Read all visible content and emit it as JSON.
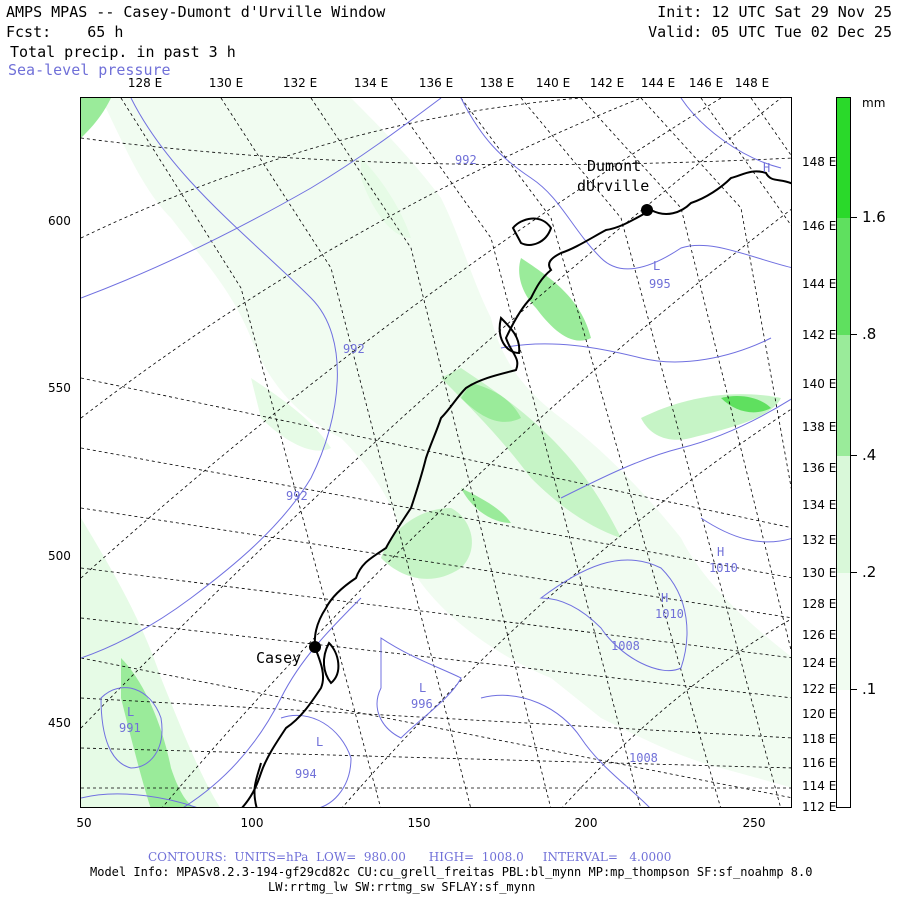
{
  "header": {
    "title": "AMPS MPAS -- Casey-Dumont d'Urville Window",
    "fcst_label": "Fcst:",
    "fcst_value": "65 h",
    "field": "Total precip. in past 3 h",
    "overlay": "Sea-level pressure",
    "init": "Init: 12 UTC Sat 29 Nov 25",
    "valid": "Valid: 05 UTC Tue 02 Dec 25"
  },
  "top_longitudes": [
    "128 E",
    "130 E",
    "132 E",
    "134 E",
    "136 E",
    "138 E",
    "140 E",
    "142 E",
    "144 E",
    "146 E",
    "148 E"
  ],
  "right_longitudes": [
    "148 E",
    "146 E",
    "144 E",
    "142 E",
    "140 E",
    "138 E",
    "136 E",
    "134 E",
    "132 E",
    "130 E",
    "128 E",
    "126 E",
    "124 E",
    "122 E",
    "120 E",
    "118 E",
    "116 E",
    "114 E",
    "112 E"
  ],
  "y_ticks": [
    "600",
    "550",
    "500",
    "450"
  ],
  "x_ticks": [
    "50",
    "100",
    "150",
    "200",
    "250"
  ],
  "colorbar": {
    "unit": "mm",
    "labels": [
      "1.6",
      ".8",
      ".4",
      ".2",
      ".1"
    ],
    "colors": {
      "c1": "#e6fbe6",
      "c2": "#c6f4c6",
      "c3": "#9aeb9a",
      "c4": "#5fe05f",
      "c5": "#2ad92a"
    }
  },
  "places": {
    "dumont_1": "Dumont",
    "dumont_2": "dUrville",
    "casey": "Casey"
  },
  "pressure_labels": {
    "p992a": "992",
    "p992b": "992",
    "p992c": "992",
    "p995": "995",
    "p996": "996",
    "p994": "994",
    "p991": "991",
    "p1010a": "1010",
    "p1010b": "1010",
    "p1008a": "1008",
    "p1008b": "1008",
    "L": "L",
    "H": "H"
  },
  "footer": {
    "contours": "CONTOURS:  UNITS=hPa  LOW=  980.00      HIGH=  1008.0     INTERVAL=   4.0000",
    "model_info": "Model Info: MPASv8.2.3-194-gf29cd82c CU:cu_grell_freitas PBL:bl_mynn MP:mp_thompson SF:sf_noahmp 8.0",
    "model_info2": "LW:rrtmg_lw SW:rrtmg_sw SFLAY:sf_mynn"
  },
  "chart_data": {
    "type": "map",
    "title": "AMPS MPAS -- Casey-Dumont d'Urville Window",
    "x_axis_ticks": [
      50,
      100,
      150,
      200,
      250
    ],
    "y_axis_ticks": [
      450,
      500,
      550,
      600
    ],
    "contour_units": "hPa",
    "contour_low": 980.0,
    "contour_high": 1008.0,
    "contour_interval": 4.0,
    "colorbar_levels_mm": [
      0.1,
      0.2,
      0.4,
      0.8,
      1.6
    ]
  }
}
